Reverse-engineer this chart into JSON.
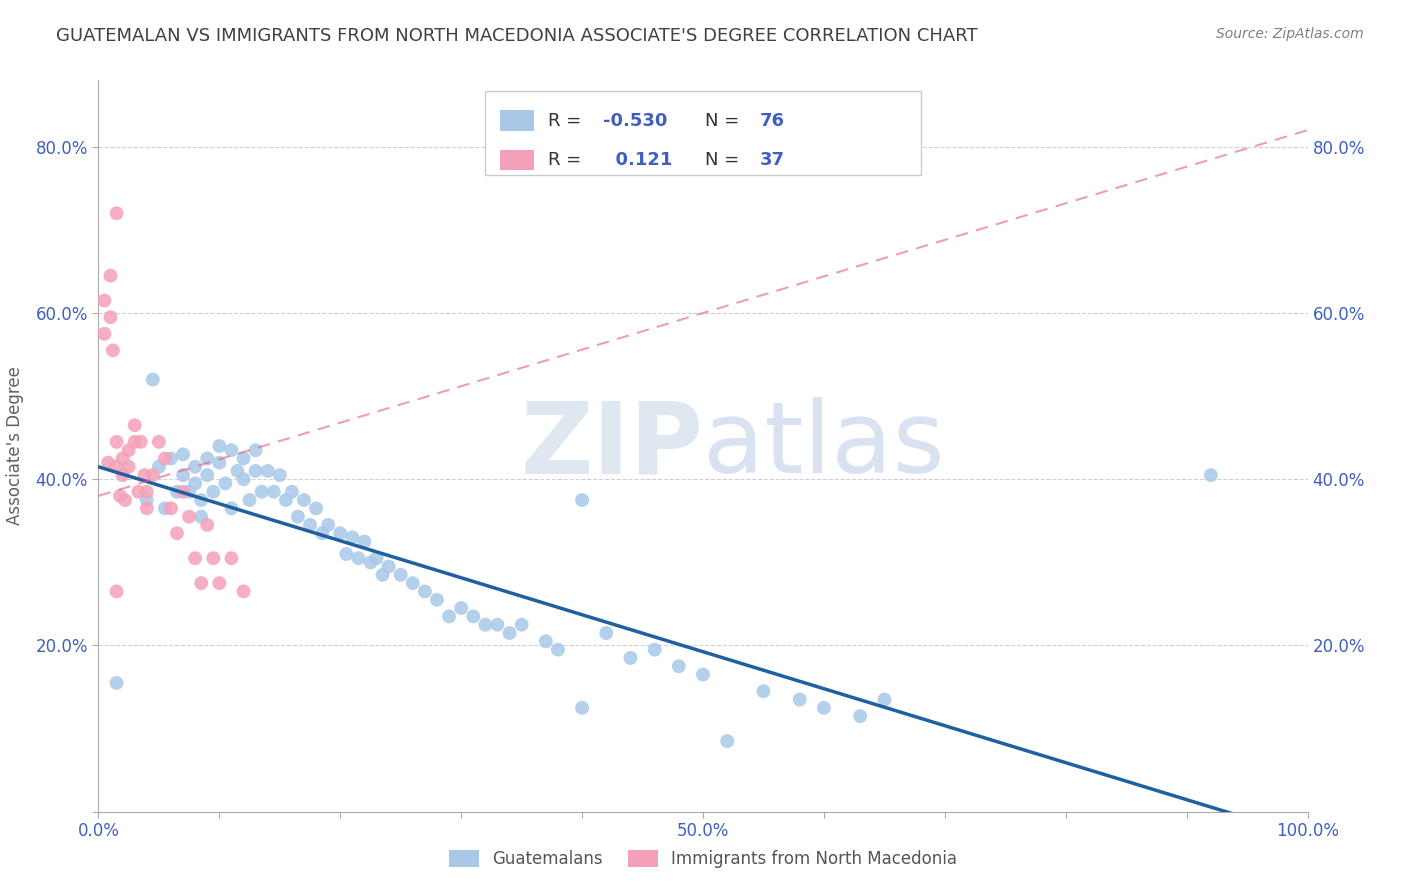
{
  "title": "GUATEMALAN VS IMMIGRANTS FROM NORTH MACEDONIA ASSOCIATE'S DEGREE CORRELATION CHART",
  "source": "Source: ZipAtlas.com",
  "ylabel": "Associate's Degree",
  "xlim": [
    0.0,
    1.0
  ],
  "ylim": [
    0.0,
    0.88
  ],
  "xtick_positions": [
    0.0,
    0.1,
    0.2,
    0.3,
    0.4,
    0.5,
    0.6,
    0.7,
    0.8,
    0.9,
    1.0
  ],
  "xtick_labels": [
    "0.0%",
    "",
    "",
    "",
    "",
    "50.0%",
    "",
    "",
    "",
    "",
    "100.0%"
  ],
  "ytick_positions": [
    0.0,
    0.2,
    0.4,
    0.6,
    0.8
  ],
  "ytick_labels": [
    "",
    "20.0%",
    "40.0%",
    "60.0%",
    "80.0%"
  ],
  "blue_color": "#a8c8e8",
  "pink_color": "#f4a0b8",
  "line_blue_color": "#2060a0",
  "line_pink_color": "#e06080",
  "grid_color": "#c8c8d8",
  "axis_label_color": "#4060c0",
  "title_color": "#404040",
  "source_color": "#808080",
  "ylabel_color": "#606060",
  "legend_r1_label": "R = ",
  "legend_r1_val": "-0.530",
  "legend_n1_label": "N = ",
  "legend_n1_val": "76",
  "legend_r2_label": "R = ",
  "legend_r2_val": "0.121",
  "legend_n2_label": "N = ",
  "legend_n2_val": "37",
  "bottom_label1": "Guatemalans",
  "bottom_label2": "Immigrants from North Macedonia",
  "blue_scatter_x": [
    0.015,
    0.04,
    0.045,
    0.05,
    0.055,
    0.06,
    0.065,
    0.07,
    0.07,
    0.075,
    0.08,
    0.08,
    0.085,
    0.085,
    0.09,
    0.09,
    0.095,
    0.1,
    0.1,
    0.105,
    0.11,
    0.11,
    0.115,
    0.12,
    0.12,
    0.125,
    0.13,
    0.13,
    0.135,
    0.14,
    0.145,
    0.15,
    0.155,
    0.16,
    0.165,
    0.17,
    0.175,
    0.18,
    0.185,
    0.19,
    0.2,
    0.205,
    0.21,
    0.215,
    0.22,
    0.225,
    0.23,
    0.235,
    0.24,
    0.25,
    0.26,
    0.27,
    0.28,
    0.29,
    0.3,
    0.31,
    0.32,
    0.33,
    0.34,
    0.35,
    0.37,
    0.38,
    0.4,
    0.42,
    0.44,
    0.46,
    0.48,
    0.5,
    0.52,
    0.55,
    0.58,
    0.6,
    0.63,
    0.65,
    0.92,
    0.4
  ],
  "blue_scatter_y": [
    0.155,
    0.375,
    0.52,
    0.415,
    0.365,
    0.425,
    0.385,
    0.43,
    0.405,
    0.385,
    0.415,
    0.395,
    0.375,
    0.355,
    0.425,
    0.405,
    0.385,
    0.44,
    0.42,
    0.395,
    0.365,
    0.435,
    0.41,
    0.425,
    0.4,
    0.375,
    0.435,
    0.41,
    0.385,
    0.41,
    0.385,
    0.405,
    0.375,
    0.385,
    0.355,
    0.375,
    0.345,
    0.365,
    0.335,
    0.345,
    0.335,
    0.31,
    0.33,
    0.305,
    0.325,
    0.3,
    0.305,
    0.285,
    0.295,
    0.285,
    0.275,
    0.265,
    0.255,
    0.235,
    0.245,
    0.235,
    0.225,
    0.225,
    0.215,
    0.225,
    0.205,
    0.195,
    0.375,
    0.215,
    0.185,
    0.195,
    0.175,
    0.165,
    0.085,
    0.145,
    0.135,
    0.125,
    0.115,
    0.135,
    0.405,
    0.125
  ],
  "pink_scatter_x": [
    0.005,
    0.005,
    0.008,
    0.01,
    0.01,
    0.012,
    0.015,
    0.015,
    0.015,
    0.018,
    0.02,
    0.02,
    0.022,
    0.025,
    0.025,
    0.03,
    0.03,
    0.033,
    0.035,
    0.038,
    0.04,
    0.04,
    0.045,
    0.05,
    0.055,
    0.06,
    0.065,
    0.07,
    0.075,
    0.08,
    0.085,
    0.09,
    0.095,
    0.1,
    0.11,
    0.12,
    0.015
  ],
  "pink_scatter_y": [
    0.615,
    0.575,
    0.42,
    0.645,
    0.595,
    0.555,
    0.445,
    0.415,
    0.72,
    0.38,
    0.425,
    0.405,
    0.375,
    0.435,
    0.415,
    0.465,
    0.445,
    0.385,
    0.445,
    0.405,
    0.385,
    0.365,
    0.405,
    0.445,
    0.425,
    0.365,
    0.335,
    0.385,
    0.355,
    0.305,
    0.275,
    0.345,
    0.305,
    0.275,
    0.305,
    0.265,
    0.265
  ],
  "blue_line_x": [
    0.0,
    1.0
  ],
  "blue_line_y": [
    0.415,
    -0.03
  ],
  "pink_line_x": [
    0.0,
    1.0
  ],
  "pink_line_y": [
    0.38,
    0.82
  ],
  "watermark_zip_color": "#b8cce0",
  "watermark_atlas_color": "#3060b0"
}
